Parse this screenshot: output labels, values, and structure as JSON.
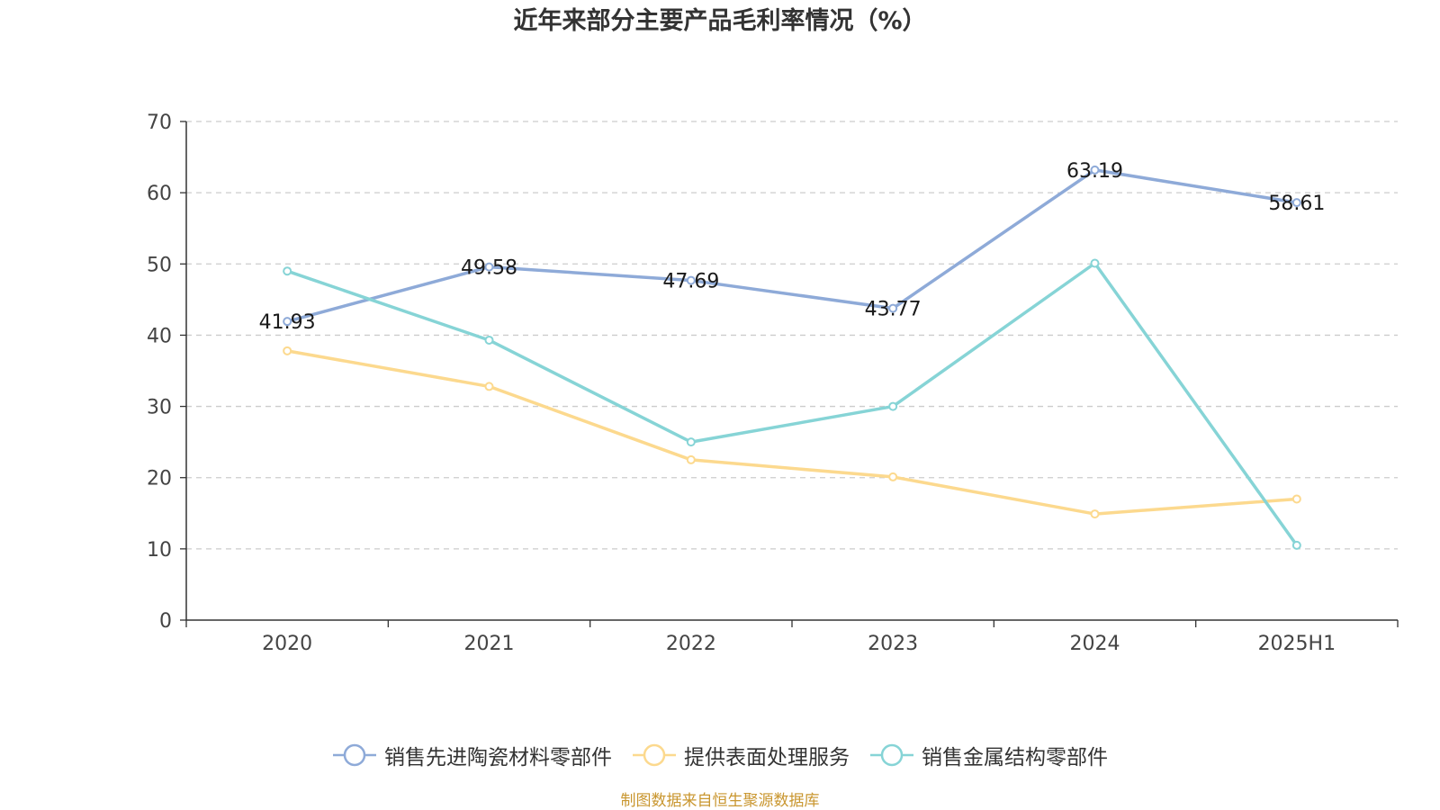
{
  "chart_data": {
    "type": "line",
    "title": "近年来部分主要产品毛利率情况（%）",
    "categories": [
      "2020",
      "2021",
      "2022",
      "2023",
      "2024",
      "2025H1"
    ],
    "yticks": [
      "0",
      "10",
      "20",
      "30",
      "40",
      "50",
      "60",
      "70"
    ],
    "ylim": [
      0,
      70
    ],
    "grid": true,
    "legend_position": "bottom",
    "series": [
      {
        "name": "销售先进陶瓷材料零部件",
        "color": "#8eaad8",
        "values": [
          41.93,
          49.58,
          47.69,
          43.77,
          63.19,
          58.61
        ],
        "labels": [
          "41.93",
          "49.58",
          "47.69",
          "43.77",
          "63.19",
          "58.61"
        ]
      },
      {
        "name": "提供表面处理服务",
        "color": "#fcd98e",
        "values": [
          37.8,
          32.8,
          22.5,
          20.1,
          14.9,
          17.0
        ]
      },
      {
        "name": "销售金属结构零部件",
        "color": "#86d4d6",
        "values": [
          49.0,
          39.3,
          25.0,
          30.0,
          50.1,
          10.5
        ]
      }
    ]
  },
  "source": "制图数据来自恒生聚源数据库"
}
